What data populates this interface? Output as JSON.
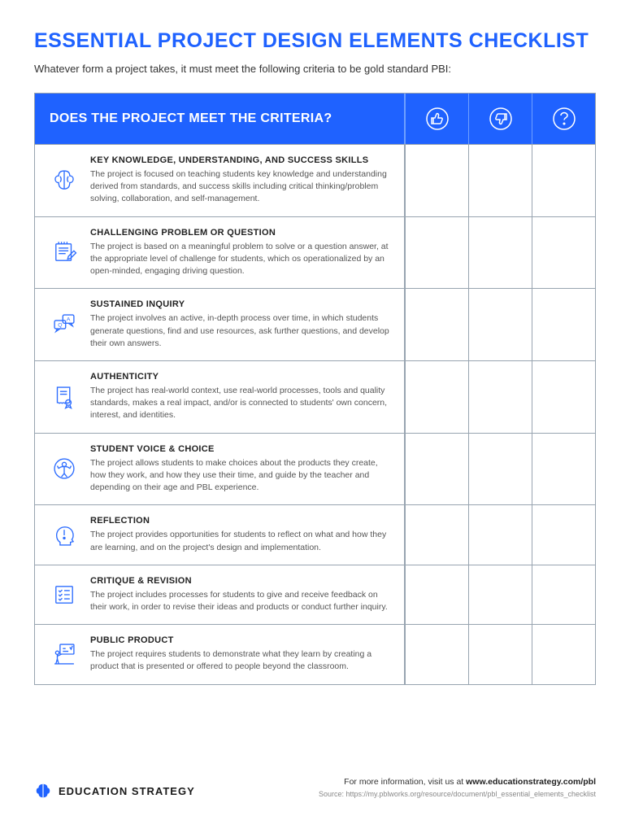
{
  "colors": {
    "primary": "#1f62ff",
    "border": "#98a4b0",
    "header_divider": "#6fa0ff",
    "icon_stroke": "#2d6dff",
    "text_main": "#333",
    "text_muted": "#555",
    "background": "#ffffff"
  },
  "title": "ESSENTIAL PROJECT DESIGN ELEMENTS CHECKLIST",
  "subtitle": "Whatever form a project takes, it must meet the following criteria to be gold standard PBI:",
  "table_header": "DOES THE PROJECT MEET THE CRITERIA?",
  "header_icons": [
    "thumbs-up-icon",
    "thumbs-down-icon",
    "question-icon"
  ],
  "rows": [
    {
      "icon": "brain-icon",
      "title": "KEY KNOWLEDGE, UNDERSTANDING, AND SUCCESS SKILLS",
      "desc": "The project is focused on teaching students key knowledge and understanding derived from standards, and success skills including critical thinking/problem solving, collaboration, and self-management."
    },
    {
      "icon": "notepad-pencil-icon",
      "title": "CHALLENGING PROBLEM OR QUESTION",
      "desc": "The project is based on a meaningful problem to solve or a question answer, at the appropriate level of challenge for students, which os operationalized by an open-minded, engaging driving question."
    },
    {
      "icon": "qa-bubbles-icon",
      "title": "SUSTAINED INQUIRY",
      "desc": "The project involves an active, in-depth process over time, in which students generate questions, find and use resources, ask further questions, and develop their own answers."
    },
    {
      "icon": "certificate-icon",
      "title": "AUTHENTICITY",
      "desc": "The project has real-world context, use real-world processes, tools and quality standards, makes a real impact, and/or is connected to students' own concern, interest, and identities."
    },
    {
      "icon": "person-arms-up-icon",
      "title": "STUDENT VOICE & CHOICE",
      "desc": "The project allows students to make choices about the products they create, how they work, and how they use their time, and guide by the teacher and depending on their age and PBL experience."
    },
    {
      "icon": "head-exclaim-icon",
      "title": "REFLECTION",
      "desc": "The project provides opportunities for students to reflect on what and how they are learning, and on the project's design and implementation."
    },
    {
      "icon": "checklist-icon",
      "title": "CRITIQUE & REVISION",
      "desc": "The project includes processes for students to give and receive feedback on their work, in order to revise their ideas and products or conduct further inquiry."
    },
    {
      "icon": "presentation-icon",
      "title": "PUBLIC PRODUCT",
      "desc": "The project requires students to demonstrate what they learn by creating a product that is presented or offered to people beyond the classroom."
    }
  ],
  "footer": {
    "brand": "EDUCATION STRATEGY",
    "info_prefix": "For more information, visit us at ",
    "info_url": "www.educationstrategy.com/pbl",
    "source_prefix": "Source: ",
    "source_url": "https://my.pblworks.org/resource/document/pbl_essential_elements_checklist"
  }
}
